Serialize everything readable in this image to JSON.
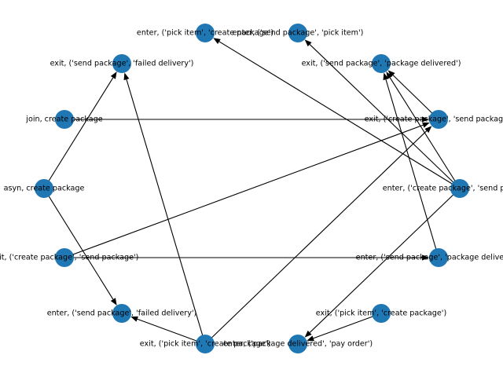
{
  "graph": {
    "node_color": "#1f77b4",
    "edge_color": "#000000",
    "nodes": [
      {
        "id": "n0",
        "label": "enter, ('send package', 'pick item')"
      },
      {
        "id": "n1",
        "label": "exit, ('create package', 'send package')"
      },
      {
        "id": "n2",
        "label": "exit, ('send package', 'failed delivery')"
      },
      {
        "id": "n3",
        "label": "exit, ('send package', 'package delivered')"
      },
      {
        "id": "n4",
        "label": "join, create package"
      },
      {
        "id": "n5",
        "label": "enter, ('create package', 'send package')"
      },
      {
        "id": "n6",
        "label": "asyn, create package"
      },
      {
        "id": "n7",
        "label": "enter, ('send package', 'package delivered')"
      },
      {
        "id": "n8",
        "label": "exit, ('create package', 'send package')"
      },
      {
        "id": "n9",
        "label": "enter, ('pick item', 'create package')"
      },
      {
        "id": "n10",
        "label": "enter, ('send package', 'failed delivery')"
      },
      {
        "id": "n11",
        "label": "exit, ('pick item', 'create package')"
      },
      {
        "id": "n12",
        "label": "exit, ('pick item', 'create package')"
      },
      {
        "id": "n13",
        "label": "enter, ('package delivered', 'pay order')"
      }
    ],
    "edges": [
      {
        "from": "n6",
        "to": "n2"
      },
      {
        "from": "n6",
        "to": "n10"
      },
      {
        "from": "n4",
        "to": "n1"
      },
      {
        "from": "n8",
        "to": "n1"
      },
      {
        "from": "n8",
        "to": "n7"
      },
      {
        "from": "n5",
        "to": "n0"
      },
      {
        "from": "n5",
        "to": "n9"
      },
      {
        "from": "n5",
        "to": "n3"
      },
      {
        "from": "n5",
        "to": "n13"
      },
      {
        "from": "n1",
        "to": "n3"
      },
      {
        "from": "n7",
        "to": "n3"
      },
      {
        "from": "n11",
        "to": "n13"
      },
      {
        "from": "n12",
        "to": "n2"
      },
      {
        "from": "n12",
        "to": "n10"
      },
      {
        "from": "n12",
        "to": "n1"
      }
    ]
  }
}
